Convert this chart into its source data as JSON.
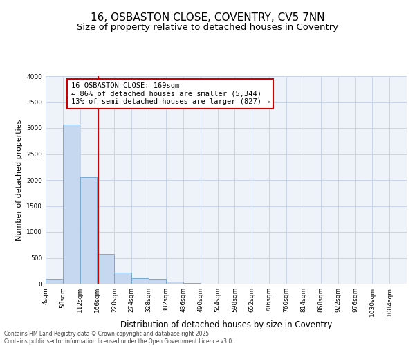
{
  "title_line1": "16, OSBASTON CLOSE, COVENTRY, CV5 7NN",
  "title_line2": "Size of property relative to detached houses in Coventry",
  "xlabel": "Distribution of detached houses by size in Coventry",
  "ylabel": "Number of detached properties",
  "annotation_title": "16 OSBASTON CLOSE: 169sqm",
  "annotation_line1": "← 86% of detached houses are smaller (5,344)",
  "annotation_line2": "13% of semi-detached houses are larger (827) →",
  "property_size": 169,
  "categories": [
    4,
    58,
    112,
    166,
    220,
    274,
    328,
    382,
    436,
    490,
    544,
    598,
    652,
    706,
    760,
    814,
    868,
    922,
    976,
    1030,
    1084
  ],
  "bin_width": 54,
  "values": [
    90,
    3070,
    2060,
    580,
    220,
    110,
    90,
    40,
    10,
    0,
    0,
    0,
    0,
    0,
    0,
    0,
    0,
    0,
    0,
    0,
    0
  ],
  "bar_color": "#c5d8ef",
  "bar_edge_color": "#6aa0c8",
  "vline_color": "#cc0000",
  "annotation_box_color": "#cc0000",
  "grid_color": "#c8d4e8",
  "bg_color": "#eef2f9",
  "ylim": [
    0,
    4000
  ],
  "yticks": [
    0,
    500,
    1000,
    1500,
    2000,
    2500,
    3000,
    3500,
    4000
  ],
  "footer_line1": "Contains HM Land Registry data © Crown copyright and database right 2025.",
  "footer_line2": "Contains public sector information licensed under the Open Government Licence v3.0.",
  "title_fontsize": 11,
  "subtitle_fontsize": 9.5,
  "tick_fontsize": 6.5,
  "ylabel_fontsize": 8,
  "xlabel_fontsize": 8.5,
  "annotation_fontsize": 7.5,
  "footer_fontsize": 5.5
}
